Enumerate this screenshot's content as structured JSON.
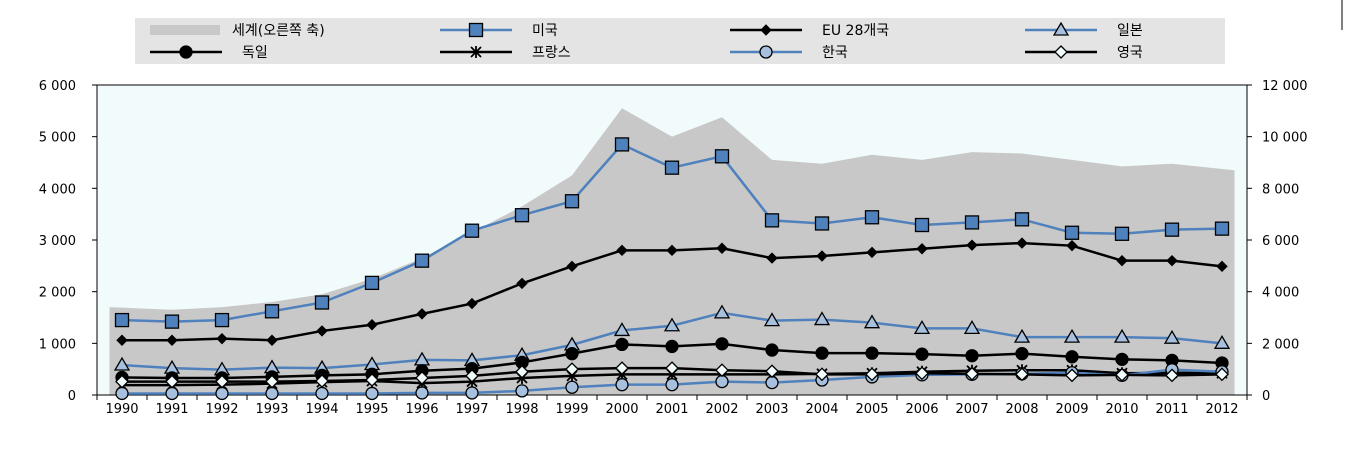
{
  "chart_data": {
    "type": "line",
    "x": [
      "1990",
      "1991",
      "1992",
      "1993",
      "1994",
      "1995",
      "1996",
      "1997",
      "1998",
      "1999",
      "2000",
      "2001",
      "2002",
      "2003",
      "2004",
      "2005",
      "2006",
      "2007",
      "2008",
      "2009",
      "2010",
      "2011",
      "2012"
    ],
    "left_axis": {
      "ylim": [
        0,
        6000
      ],
      "ticks": [
        "0",
        "1 000",
        "2 000",
        "3 000",
        "4 000",
        "5 000",
        "6 000"
      ]
    },
    "right_axis": {
      "ylim": [
        0,
        12000
      ],
      "ticks": [
        "0",
        "2 000",
        "4 000",
        "6 000",
        "8 000",
        "10 000",
        "12 000"
      ]
    },
    "area_series": {
      "name": "세계(오른쪽 축)",
      "color": "#c8c8c8",
      "values": [
        3400,
        3300,
        3400,
        3600,
        3900,
        4500,
        5300,
        6300,
        7300,
        8500,
        11100,
        10000,
        10750,
        9100,
        8950,
        9300,
        9100,
        9400,
        9350,
        9100,
        8850,
        8950,
        8700
      ]
    },
    "series": [
      {
        "name": "미국",
        "color": "#4f81bd",
        "marker": "square",
        "values": [
          1450,
          1420,
          1450,
          1620,
          1790,
          2170,
          2600,
          3180,
          3480,
          3750,
          4850,
          4400,
          4620,
          3380,
          3320,
          3440,
          3290,
          3340,
          3400,
          3140,
          3120,
          3200,
          3220
        ]
      },
      {
        "name": "EU 28개국",
        "color": "#000000",
        "marker": "diamond",
        "values": [
          1060,
          1060,
          1090,
          1060,
          1240,
          1360,
          1570,
          1770,
          2160,
          2490,
          2800,
          2800,
          2840,
          2650,
          2690,
          2760,
          2830,
          2900,
          2940,
          2890,
          2600,
          2600,
          2490
        ]
      },
      {
        "name": "일본",
        "color": "#4f81bd",
        "marker": "triangle",
        "values": [
          580,
          520,
          490,
          530,
          520,
          590,
          680,
          670,
          770,
          970,
          1250,
          1340,
          1590,
          1440,
          1460,
          1400,
          1290,
          1290,
          1120,
          1120,
          1120,
          1100,
          1000
        ]
      },
      {
        "name": "독일",
        "color": "#000000",
        "marker": "circle",
        "values": [
          340,
          330,
          330,
          350,
          380,
          400,
          470,
          510,
          630,
          800,
          980,
          940,
          990,
          870,
          810,
          810,
          790,
          760,
          800,
          740,
          690,
          670,
          620
        ]
      },
      {
        "name": "프랑스",
        "color": "#000000",
        "marker": "star",
        "values": [
          190,
          190,
          200,
          220,
          250,
          270,
          230,
          260,
          330,
          370,
          400,
          400,
          400,
          400,
          410,
          420,
          450,
          470,
          480,
          480,
          420,
          430,
          420
        ]
      },
      {
        "name": "한국",
        "color": "#4f81bd",
        "marker": "circle",
        "values": [
          30,
          30,
          30,
          30,
          30,
          30,
          40,
          40,
          80,
          150,
          200,
          200,
          260,
          240,
          290,
          350,
          390,
          400,
          410,
          430,
          380,
          490,
          450
        ]
      },
      {
        "name": "영국",
        "color": "#000000",
        "marker": "diamond-open",
        "values": [
          260,
          260,
          260,
          260,
          270,
          290,
          330,
          370,
          450,
          500,
          520,
          520,
          480,
          460,
          400,
          400,
          420,
          410,
          400,
          380,
          390,
          380,
          400
        ]
      }
    ],
    "legend": {
      "placement": "top",
      "items": [
        "세계(오른쪽 축)",
        "미국",
        "EU 28개국",
        "일본",
        "독일",
        "프랑스",
        "한국",
        "영국"
      ]
    },
    "grid": false,
    "plot_background": "#f2fbfb"
  }
}
